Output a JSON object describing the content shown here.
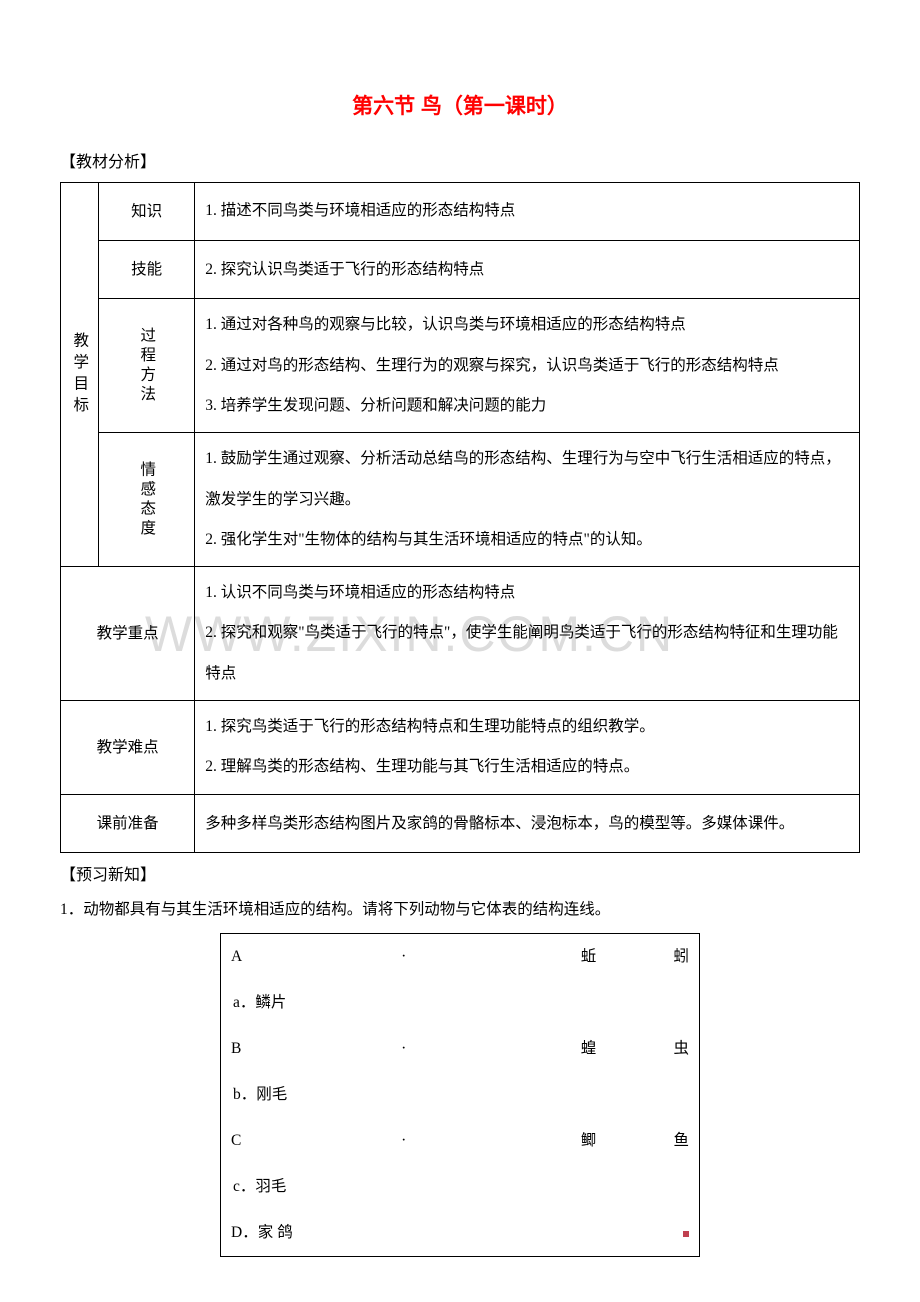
{
  "title": "第六节 鸟（第一课时）",
  "sections": {
    "analysis": "【教材分析】",
    "preview": "【预习新知】"
  },
  "table": {
    "row_group": "教学目标",
    "rows": [
      {
        "label": "知识",
        "content": "1. 描述不同鸟类与环境相适应的形态结构特点"
      },
      {
        "label": "技能",
        "content": "2. 探究认识鸟类适于飞行的形态结构特点"
      },
      {
        "label": "过程方法",
        "lines": [
          "1. 通过对各种鸟的观察与比较，认识鸟类与环境相适应的形态结构特点",
          "2. 通过对鸟的形态结构、生理行为的观察与探究，认识鸟类适于飞行的形态结构特点",
          "3.  培养学生发现问题、分析问题和解决问题的能力"
        ]
      },
      {
        "label": "情感态度",
        "lines": [
          "1.  鼓励学生通过观察、分析活动总结鸟的形态结构、生理行为与空中飞行生活相适应的特点，激发学生的学习兴趣。",
          "2.  强化学生对\"生物体的结构与其生活环境相适应的特点\"的认知。"
        ]
      }
    ],
    "key_point": {
      "label": "教学重点",
      "lines": [
        "1. 认识不同鸟类与环境相适应的形态结构特点",
        "2. 探究和观察\"鸟类适于飞行的特点\"，使学生能阐明鸟类适于飞行的形态结构特征和生理功能特点"
      ]
    },
    "difficulty": {
      "label": "教学难点",
      "lines": [
        "1. 探究鸟类适于飞行的形态结构特点和生理功能特点的组织教学。",
        "2. 理解鸟类的形态结构、生理功能与其飞行生活相适应的特点。"
      ]
    },
    "prep": {
      "label": "课前准备",
      "content": "多种多样鸟类形态结构图片及家鸽的骨骼标本、浸泡标本，鸟的模型等。多媒体课件。"
    }
  },
  "question1": "1．动物都具有与其生活环境相适应的结构。请将下列动物与它体表的结构连线。",
  "matching": [
    {
      "letter": "A",
      "dot": "·",
      "mid": "蚯",
      "right": "蚓"
    },
    {
      "sub": "a．鳞片"
    },
    {
      "letter": "B",
      "dot": "·",
      "mid": "蝗",
      "right": "虫"
    },
    {
      "sub": "b．刚毛"
    },
    {
      "letter": "C",
      "dot": "·",
      "mid": "鲫",
      "right": "鱼"
    },
    {
      "sub": "c．羽毛"
    },
    {
      "letter_only": "D．家 鸽",
      "marker": true
    }
  ],
  "watermark": "WWW.ZIXIN.COM.CN",
  "colors": {
    "title": "#ff0000",
    "text": "#000000",
    "watermark": "#dcdcdc",
    "border": "#000000",
    "background": "#ffffff",
    "marker": "#c04050"
  }
}
